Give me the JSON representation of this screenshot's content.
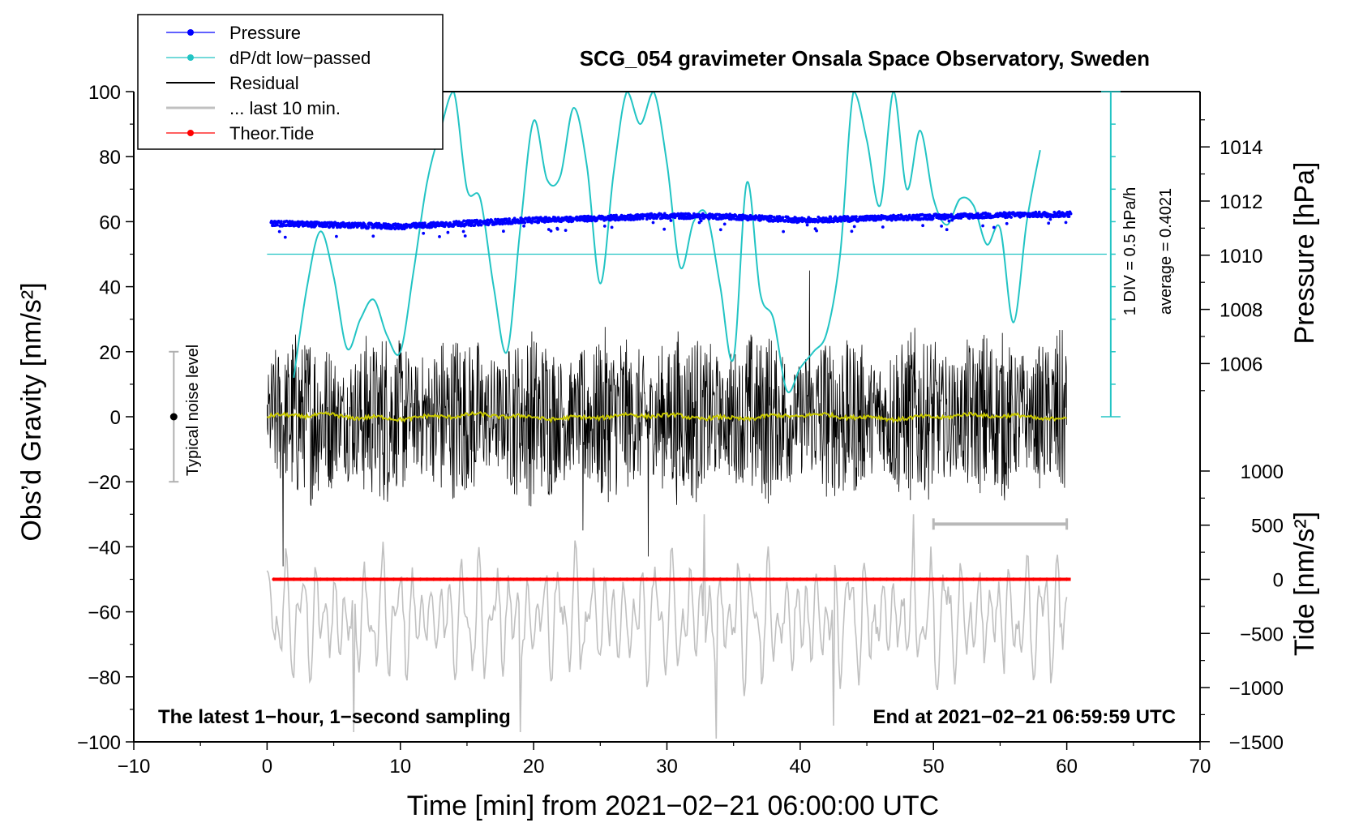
{
  "chart_data": {
    "type": "line",
    "title": "SCG_054 gravimeter Onsala Space Observatory, Sweden",
    "xlabel": "Time [min] from 2021−02−21 06:00:00 UTC",
    "ylabel_left": "Obs’d Gravity [nm/s²]",
    "ylabel_right_top": "Pressure [hPa]",
    "ylabel_right_bottom": "Tide [nm/s²]",
    "xlim": [
      -10,
      70
    ],
    "ylim_left": [
      -100,
      100
    ],
    "x_ticks": [
      -10,
      0,
      10,
      20,
      30,
      40,
      50,
      60,
      70
    ],
    "x_tick_labels": [
      "−10",
      "0",
      "10",
      "20",
      "30",
      "40",
      "50",
      "60",
      "70"
    ],
    "y_ticks_left": [
      100,
      80,
      60,
      40,
      20,
      0,
      -20,
      -40,
      -60,
      -80,
      -100
    ],
    "y_tick_labels_left": [
      "100",
      "80",
      "60",
      "40",
      "20",
      "0",
      "−20",
      "−40",
      "−60",
      "−80",
      "−100"
    ],
    "pressure_axis": {
      "ticks": [
        1014,
        1012,
        1010,
        1008,
        1006
      ],
      "tick_labels": [
        "1014",
        "1012",
        "1010",
        "1008",
        "1006"
      ],
      "left_value_at_1014": 83,
      "left_value_per_hPa": 8.33
    },
    "tide_axis": {
      "ticks": [
        1000,
        500,
        0,
        -500,
        -1000,
        -1500
      ],
      "tick_labels": [
        "1000",
        "500",
        "0",
        "−500",
        "−1000",
        "−1500"
      ],
      "left_value_at_zero": -50,
      "left_value_per_unit": 0.0333
    },
    "dpdt_axis": {
      "label_div": "1 DIV = 0.5 hPa/h",
      "label_avg": "average = 0.4021",
      "baseline_left_value": 50,
      "min_left_value": 0,
      "max_left_value": 100
    },
    "noise_bar": {
      "label": "Typical noise level",
      "x": -7,
      "center": 0,
      "half_range": 20
    },
    "ten_min_bar": {
      "x_start": 50,
      "x_end": 60,
      "y": -33
    },
    "notes": {
      "left": "The latest 1−hour, 1−second sampling",
      "right": "End at 2021−02−21 06:59:59 UTC"
    },
    "legend": [
      {
        "label": "Pressure",
        "color": "#0000ff",
        "marker": true
      },
      {
        "label": "dP/dt low−passed",
        "color": "#22c4c4",
        "marker": true
      },
      {
        "label": "Residual",
        "color": "#000000",
        "marker": false
      },
      {
        "label": "... last 10 min.",
        "color": "#c0c0c0",
        "marker": false
      },
      {
        "label": "Theor.Tide",
        "color": "#ff0000",
        "marker": true
      }
    ],
    "series": [
      {
        "name": "Pressure",
        "units": "left-axis gravity units",
        "color": "#0000ff",
        "x": [
          0,
          5,
          10,
          15,
          20,
          25,
          30,
          35,
          40,
          45,
          50,
          55,
          60
        ],
        "y": [
          59.5,
          59.0,
          58.5,
          59.5,
          60.5,
          61.0,
          61.8,
          61.5,
          60.5,
          61.0,
          61.5,
          62.0,
          62.3
        ]
      },
      {
        "name": "dP/dt low-passed",
        "units": "left-axis gravity units",
        "color": "#22c4c4",
        "x": [
          2,
          3,
          4,
          5,
          6,
          7,
          8,
          9,
          10,
          11,
          12,
          13,
          14,
          15,
          16,
          17,
          18,
          19,
          20,
          21,
          22,
          23,
          24,
          25,
          26,
          27,
          28,
          29,
          30,
          31,
          32,
          33,
          34,
          35,
          36,
          37,
          38,
          39,
          40,
          41,
          42,
          43,
          44,
          45,
          46,
          47,
          48,
          49,
          50,
          51,
          52,
          53,
          54,
          55,
          56,
          57,
          58
        ],
        "y": [
          12,
          40,
          57,
          43,
          21,
          30,
          36,
          25,
          20,
          45,
          72,
          88,
          105,
          70,
          67,
          40,
          20,
          58,
          91,
          73,
          74,
          95,
          77,
          41,
          75,
          110,
          90,
          100,
          78,
          46,
          60,
          62,
          40,
          18,
          72,
          38,
          30,
          8,
          15,
          20,
          26,
          50,
          105,
          85,
          65,
          100,
          70,
          88,
          67,
          59,
          67,
          65,
          53,
          58,
          29,
          60,
          82
        ]
      },
      {
        "name": "Residual",
        "units": "nm/s²",
        "color": "#000000",
        "x_range": [
          0,
          60
        ],
        "amplitude_typical": 25,
        "extremes": [
          -46,
          45
        ]
      },
      {
        "name": "Residual (smoothed)",
        "units": "nm/s²",
        "color": "#c8c800",
        "x": [
          0,
          10,
          20,
          30,
          40,
          50,
          60
        ],
        "y": [
          0,
          0,
          0,
          1,
          0,
          0,
          0
        ]
      },
      {
        "name": "... last 10 min.",
        "units": "left-axis gravity units",
        "color": "#c0c0c0",
        "x_range": [
          0,
          60
        ],
        "center": -62,
        "amplitude_typical": 17,
        "extremes": [
          -99,
          -30
        ]
      },
      {
        "name": "Theor.Tide",
        "units": "left-axis gravity units",
        "color": "#ff0000",
        "x": [
          0.5,
          60.3
        ],
        "y": [
          -50,
          -50
        ]
      }
    ]
  }
}
